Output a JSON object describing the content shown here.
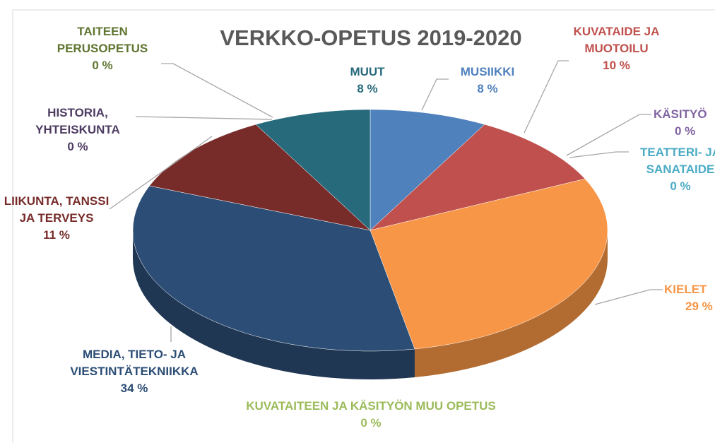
{
  "chart_data": {
    "type": "pie",
    "title": "VERKKO-OPETUS 2019-2020",
    "categories": [
      "MUSIIKKI",
      "KUVATAIDE JA MUOTOILU",
      "KÄSITYÖ",
      "TEATTERI- JA SANATAIDE",
      "KIELET",
      "KUVATAITEEN JA KÄSITYÖN MUU OPETUS",
      "MEDIA, TIETO- JA VIESTINTÄTEKNIIKKA",
      "LIIKUNTA, TANSSI JA TERVEYS",
      "HISTORIA, YHTEISKUNTA",
      "TAITEEN PERUSOPETUS",
      "MUUT"
    ],
    "values": [
      8,
      10,
      0,
      0,
      29,
      0,
      34,
      11,
      0,
      0,
      8
    ],
    "value_labels": [
      "8 %",
      "10 %",
      "0 %",
      "0 %",
      "29 %",
      "0 %",
      "34 %",
      "11 %",
      "0 %",
      "0 %",
      "8 %"
    ],
    "colors": [
      "#4f81bd",
      "#c0504d",
      "#8064a2",
      "#4bacc6",
      "#f79646",
      "#9bbb59",
      "#2c4d75",
      "#772c2a",
      "#4d3b62",
      "#5f7530",
      "#276a7c"
    ]
  }
}
